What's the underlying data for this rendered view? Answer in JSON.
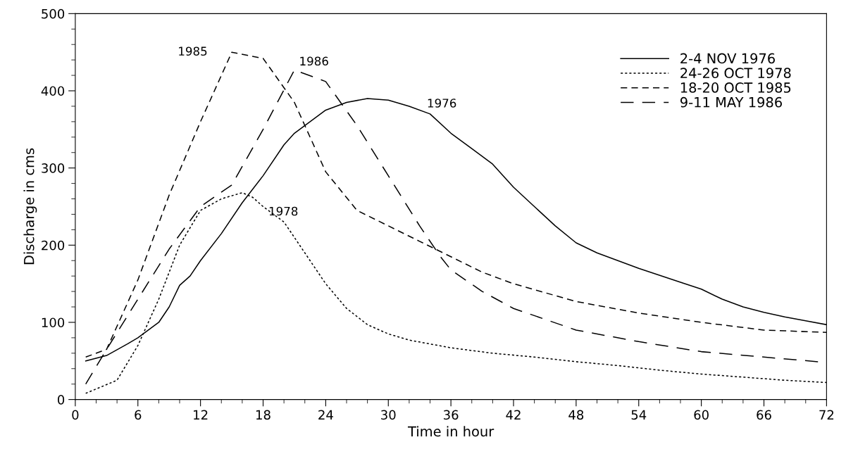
{
  "chart_data": {
    "type": "line",
    "xlabel": "Time in hour",
    "ylabel": "Discharge in cms",
    "xlim": [
      0,
      72
    ],
    "xticks": [
      0,
      6,
      12,
      18,
      24,
      30,
      36,
      42,
      48,
      54,
      60,
      66,
      72
    ],
    "ylim": [
      0,
      500
    ],
    "yticks": [
      0,
      100,
      200,
      300,
      400,
      500
    ],
    "grid": false,
    "legend": "top right",
    "marker": "none",
    "series": [
      {
        "name": "2-4 NOV 1976",
        "color": "#000000",
        "line_style": "solid",
        "x": [
          1,
          3,
          5,
          6,
          8,
          9,
          10,
          11,
          12,
          14,
          16,
          18,
          20,
          21,
          22,
          24,
          26,
          28,
          30,
          32,
          34,
          36,
          38,
          40,
          42,
          44,
          46,
          48,
          50,
          54,
          58,
          60,
          62,
          64,
          66,
          68,
          70,
          72
        ],
        "values": [
          50,
          57,
          72,
          80,
          100,
          120,
          148,
          160,
          180,
          215,
          255,
          290,
          330,
          345,
          355,
          375,
          385,
          390,
          388,
          380,
          370,
          345,
          325,
          305,
          275,
          250,
          225,
          203,
          190,
          170,
          152,
          143,
          130,
          120,
          113,
          107,
          102,
          97
        ]
      },
      {
        "name": "24-26 OCT 1978",
        "color": "#000000",
        "line_style": "dotted",
        "x": [
          1,
          4,
          6,
          8,
          10,
          12,
          14,
          16,
          17,
          18,
          20,
          22,
          24,
          26,
          28,
          30,
          32,
          36,
          40,
          44,
          48,
          52,
          56,
          60,
          64,
          68,
          72
        ],
        "values": [
          8,
          25,
          70,
          130,
          200,
          245,
          260,
          268,
          262,
          250,
          230,
          190,
          150,
          118,
          97,
          85,
          77,
          67,
          60,
          55,
          49,
          44,
          38,
          33,
          29,
          25,
          22
        ]
      },
      {
        "name": "18-20 OCT 1985",
        "color": "#000000",
        "line_style": "dashed",
        "x": [
          1,
          3,
          6,
          9,
          12,
          15,
          18,
          21,
          24,
          27,
          30,
          33,
          36,
          39,
          42,
          48,
          54,
          60,
          66,
          72
        ],
        "values": [
          55,
          65,
          155,
          265,
          360,
          450,
          442,
          385,
          295,
          245,
          225,
          205,
          185,
          165,
          150,
          127,
          112,
          100,
          90,
          87
        ]
      },
      {
        "name": "9-11 MAY 1986",
        "color": "#000000",
        "line_style": "longdash",
        "x": [
          1,
          3,
          6,
          9,
          12,
          15,
          18,
          21,
          24,
          27,
          30,
          33,
          35,
          36,
          39,
          42,
          48,
          54,
          60,
          66,
          72
        ],
        "values": [
          20,
          65,
          130,
          195,
          250,
          278,
          350,
          427,
          412,
          355,
          290,
          225,
          185,
          168,
          140,
          118,
          90,
          75,
          62,
          55,
          48
        ]
      }
    ],
    "annotations": [
      {
        "text": "1985",
        "x": 15,
        "y": 450
      },
      {
        "text": "1986",
        "x": 21,
        "y": 427
      },
      {
        "text": "1976",
        "x": 34,
        "y": 370
      },
      {
        "text": "1978",
        "x": 16,
        "y": 268
      }
    ]
  }
}
